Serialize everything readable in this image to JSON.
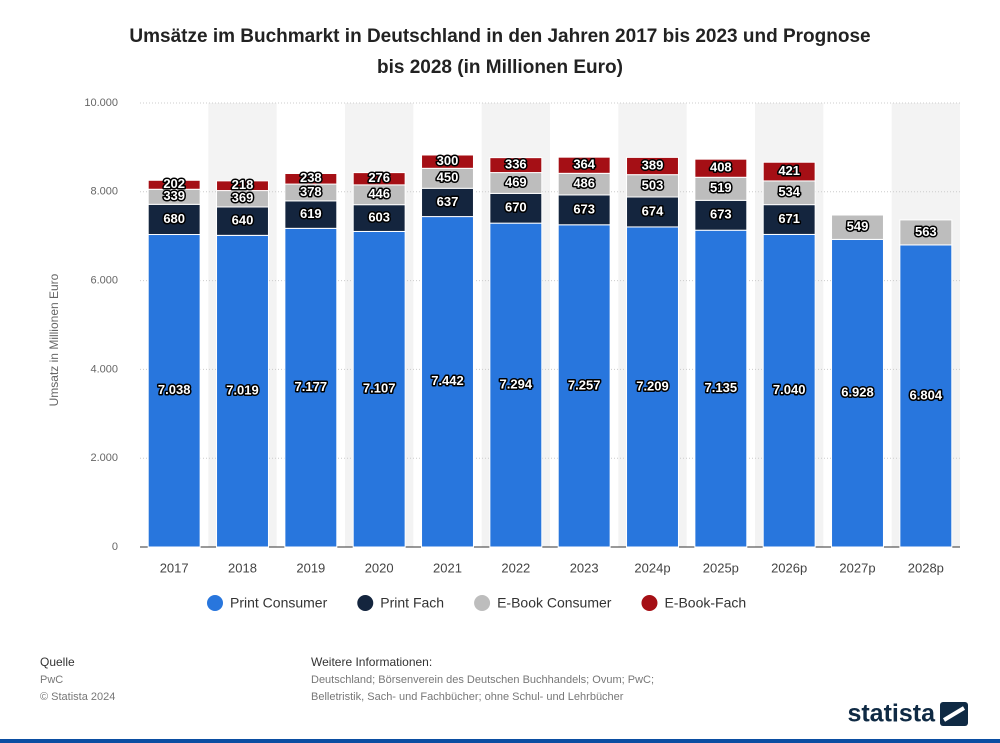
{
  "chart_data": {
    "type": "stacked_bar",
    "title": "Umsätze im Buchmarkt in Deutschland in den Jahren 2017 bis 2023 und Prognose",
    "subtitle": "bis 2028 (in Millionen Euro)",
    "y_label": "Umsatz in Millionen Euro",
    "categories": [
      "2017",
      "2018",
      "2019",
      "2020",
      "2021",
      "2022",
      "2023",
      "2024p",
      "2025p",
      "2026p",
      "2027p",
      "2028p"
    ],
    "series": [
      {
        "name": "Print Consumer",
        "color": "#2876dd",
        "values": [
          7038,
          7019,
          7177,
          7107,
          7442,
          7294,
          7257,
          7209,
          7135,
          7040,
          6928,
          6804
        ],
        "value_labels": [
          "7.038",
          "7.019",
          "7.177",
          "7.107",
          "7.442",
          "7.294",
          "7.257",
          "7.209",
          "7.135",
          "7.040",
          "6.928",
          "6.804"
        ]
      },
      {
        "name": "Print Fach",
        "color": "#14253e",
        "values": [
          680,
          640,
          619,
          603,
          637,
          670,
          673,
          674,
          673,
          671,
          null,
          null
        ]
      },
      {
        "name": "E-Book Consumer",
        "color": "#bdbdbd",
        "values": [
          339,
          369,
          378,
          446,
          450,
          469,
          486,
          503,
          519,
          534,
          549,
          563
        ]
      },
      {
        "name": "E-Book-Fach",
        "color": "#a50f15",
        "values": [
          202,
          218,
          238,
          276,
          300,
          336,
          364,
          389,
          408,
          421,
          null,
          null
        ]
      }
    ],
    "ylim": [
      0,
      10000
    ],
    "yticks": [
      0,
      {
        "value": 2000,
        "label": "2.000"
      },
      {
        "value": 4000,
        "label": "4.000"
      },
      {
        "value": 6000,
        "label": "6.000"
      },
      {
        "value": 8000,
        "label": "8.000"
      },
      {
        "value": 10000,
        "label": "10.000"
      }
    ],
    "grid": true
  },
  "footer": {
    "source_heading": "Quelle",
    "source": "PwC",
    "copyright": "© Statista 2024",
    "info_heading": "Weitere Informationen:",
    "info_lines": [
      "Deutschland; Börsenverein des Deutschen Buchhandels; Ovum; PwC;",
      "Belletristik, Sach- und Fachbücher; ohne Schul- und Lehrbücher"
    ],
    "logo": "statista"
  }
}
